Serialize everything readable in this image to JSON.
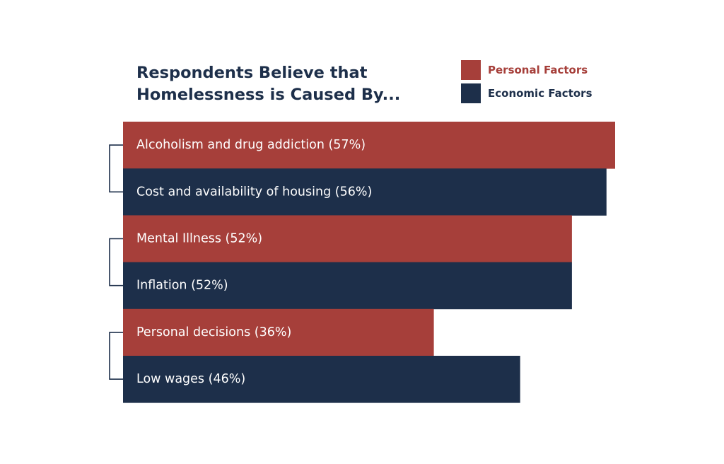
{
  "chart_data": {
    "type": "bar",
    "orientation": "horizontal",
    "title": "Respondents Believe that Homelessness is Caused By...",
    "legend": [
      {
        "name": "Personal Factors",
        "color": "#a63f3a"
      },
      {
        "name": "Economic Factors",
        "color": "#1d2f4a"
      }
    ],
    "legend_placement": "top-right",
    "xlim": [
      0,
      57
    ],
    "grid": false,
    "bars": [
      {
        "label": "Alcoholism and drug addiction (57%)",
        "value": 57,
        "series": "Personal Factors",
        "pair": 1
      },
      {
        "label": "Cost and availability of housing (56%)",
        "value": 56,
        "series": "Economic Factors",
        "pair": 1
      },
      {
        "label": "Mental Illness (52%)",
        "value": 52,
        "series": "Personal Factors",
        "pair": 2
      },
      {
        "label": "Inflation (52%)",
        "value": 52,
        "series": "Economic Factors",
        "pair": 2
      },
      {
        "label": "Personal decisions (36%)",
        "value": 36,
        "series": "Personal Factors",
        "pair": 3
      },
      {
        "label": "Low wages (46%)",
        "value": 46,
        "series": "Economic Factors",
        "pair": 3
      }
    ],
    "colors": {
      "personal": "#a63f3a",
      "economic": "#1d2f4a",
      "bracket": "#1d2f4a"
    }
  }
}
